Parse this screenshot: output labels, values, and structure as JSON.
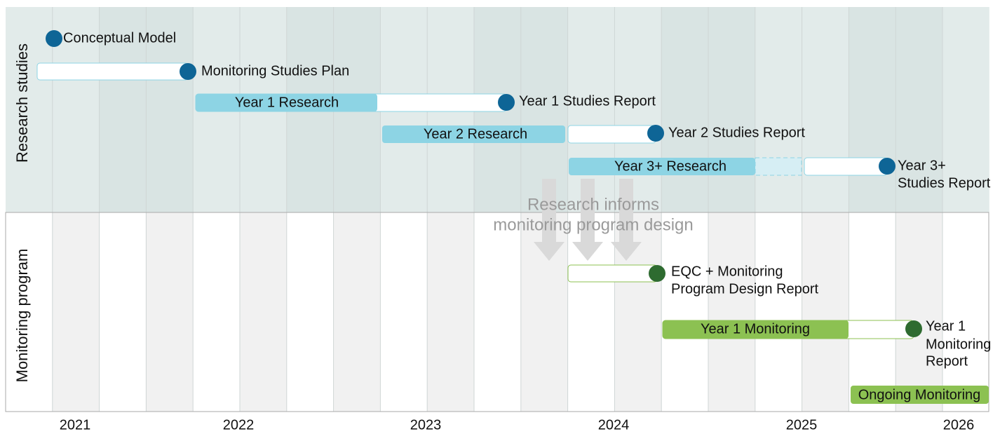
{
  "panels": {
    "research": "Research studies",
    "monitoring": "Monitoring program"
  },
  "years": [
    "2021",
    "2022",
    "2023",
    "2024",
    "2025",
    "2026"
  ],
  "milestones": {
    "conceptual_model": "Conceptual Model",
    "monitoring_studies_plan": "Monitoring Studies Plan",
    "year1_studies_report": "Year 1 Studies Report",
    "year2_studies_report": "Year 2 Studies Report",
    "year3_studies_report": [
      "Year 3+",
      "Studies Report"
    ],
    "eqc_report": [
      "EQC + Monitoring",
      "Program Design Report"
    ],
    "year1_monitoring_report": [
      "Year 1",
      "Monitoring",
      "Report"
    ]
  },
  "bars": {
    "year1_research": "Year 1 Research",
    "year2_research": "Year 2 Research",
    "year3_research": "Year 3+ Research",
    "year1_monitoring": "Year 1 Monitoring",
    "ongoing_monitoring": "Ongoing Monitoring"
  },
  "annotation": [
    "Research informs",
    "monitoring program design"
  ]
}
